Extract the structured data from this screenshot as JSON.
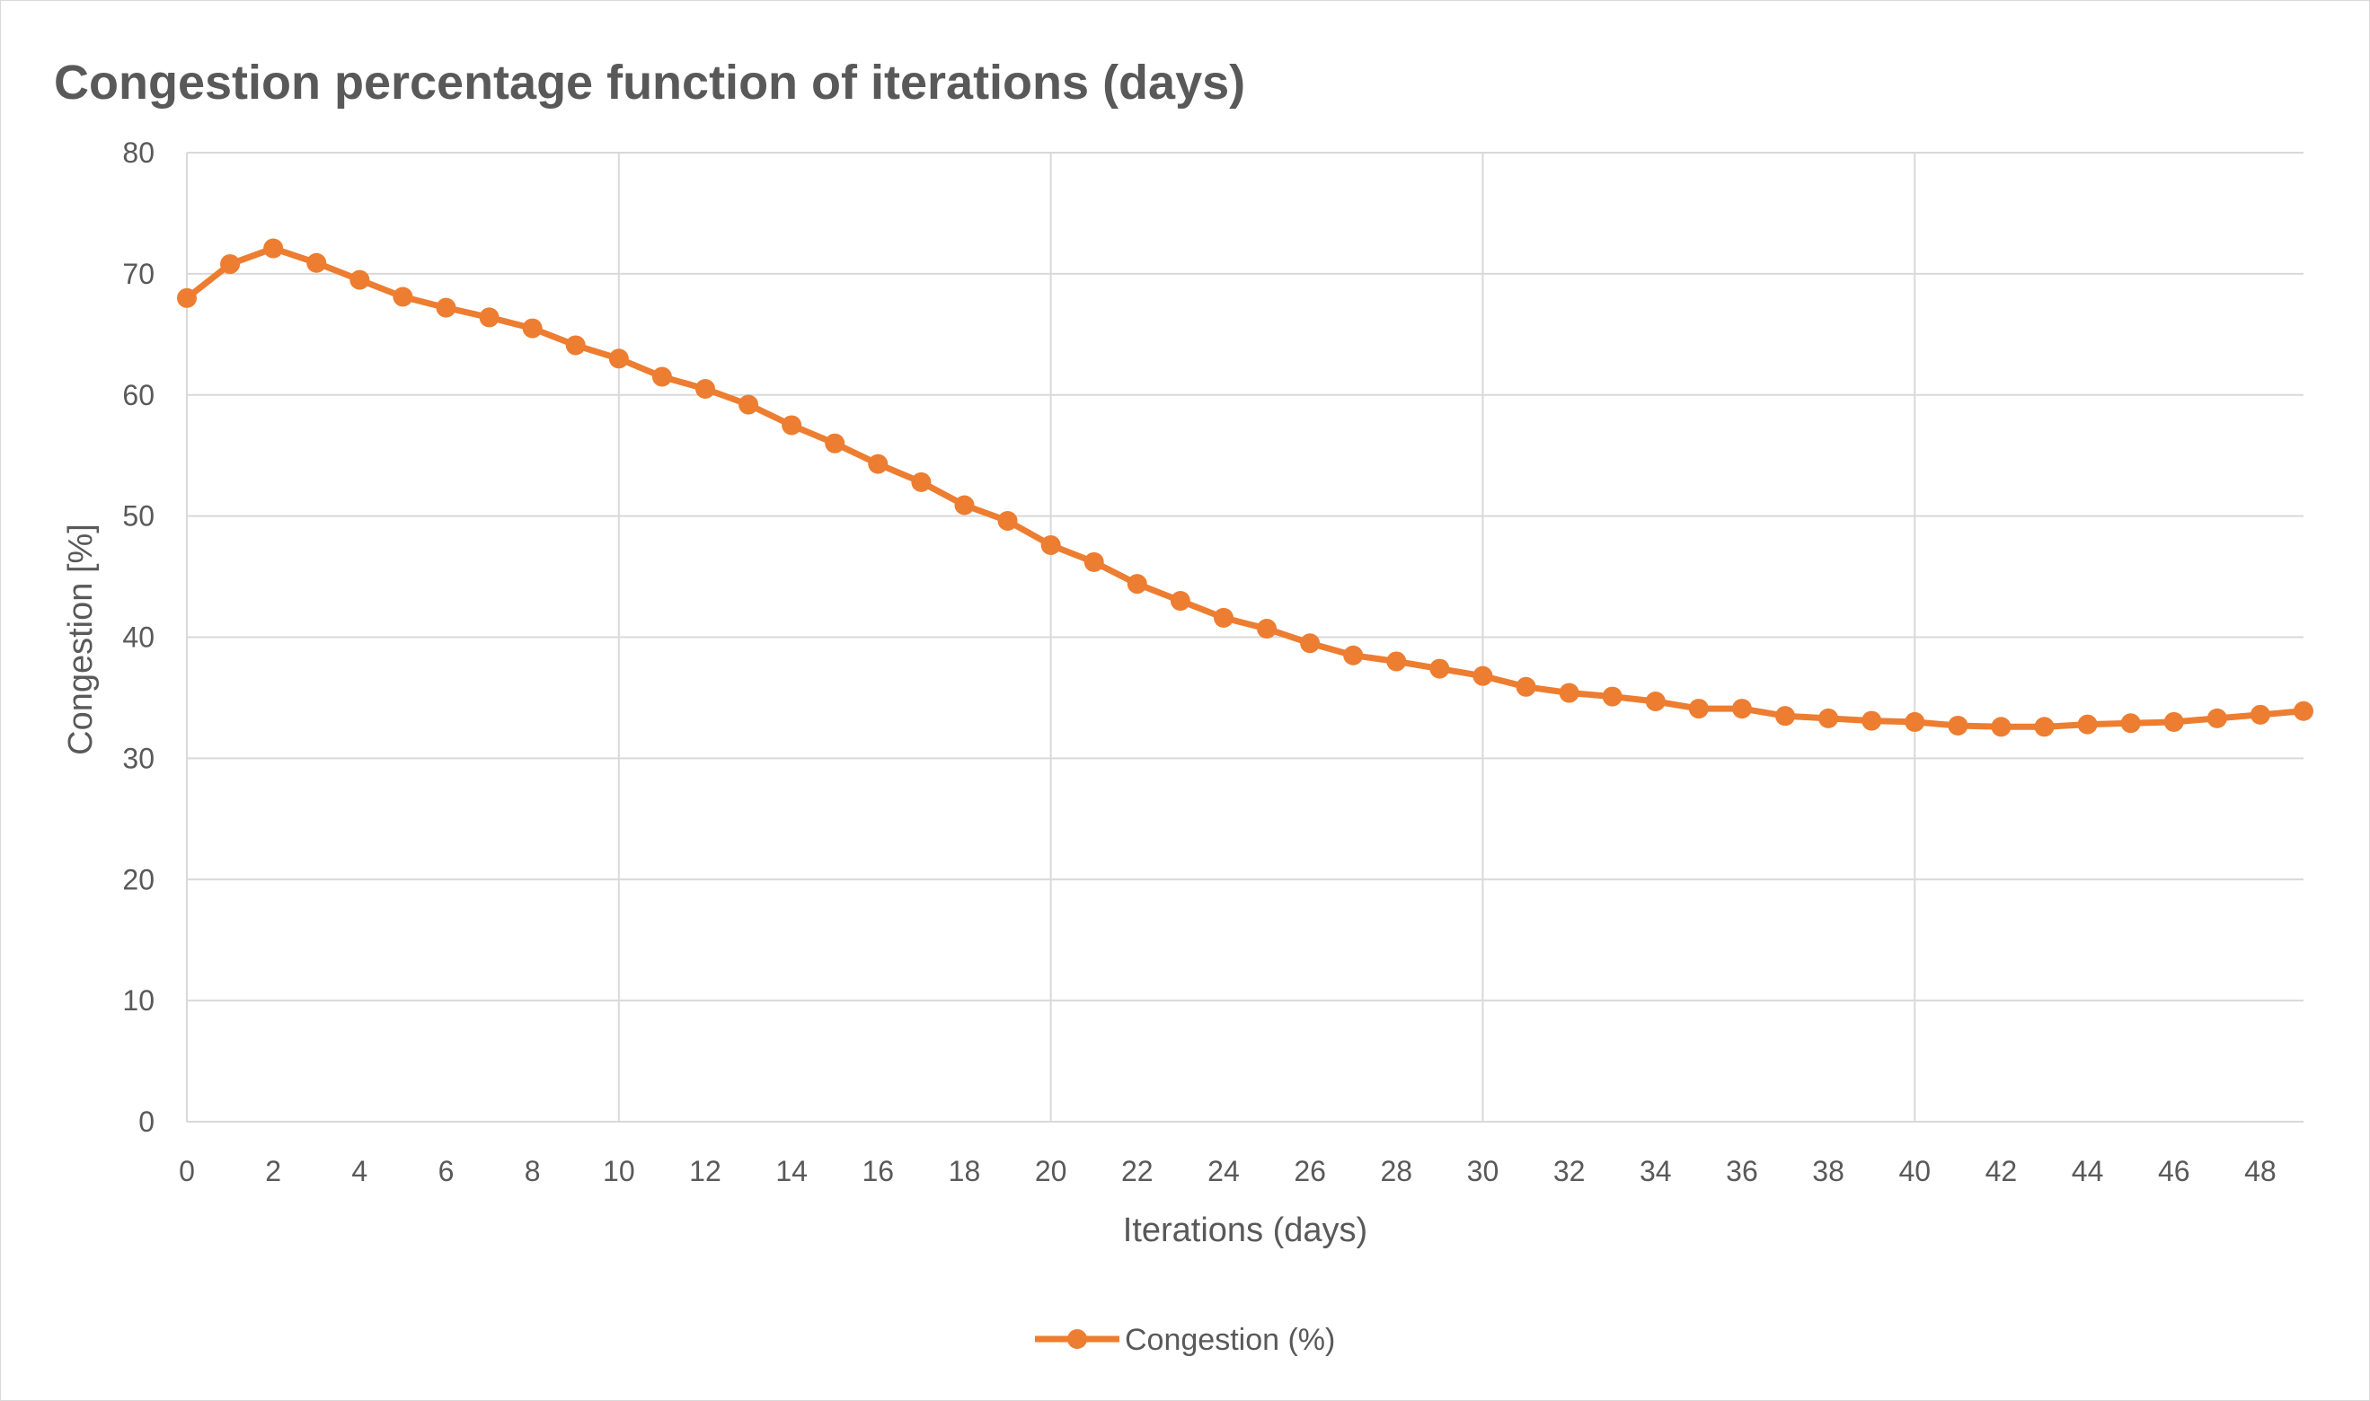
{
  "chart_data": {
    "type": "line",
    "title": "Congestion percentage function of iterations (days)",
    "xlabel": "Iterations (days)",
    "ylabel": "Congestion [%]",
    "xlim": [
      0,
      49
    ],
    "ylim": [
      0,
      80
    ],
    "x_ticks": [
      0,
      2,
      4,
      6,
      8,
      10,
      12,
      14,
      16,
      18,
      20,
      22,
      24,
      26,
      28,
      30,
      32,
      34,
      36,
      38,
      40,
      42,
      44,
      46,
      48
    ],
    "y_ticks": [
      0,
      10,
      20,
      30,
      40,
      50,
      60,
      70,
      80
    ],
    "x_gridlines": [
      0,
      10,
      20,
      30,
      40
    ],
    "y_gridlines": true,
    "legend_position": "bottom",
    "color": "#ED7D31",
    "series": [
      {
        "name": "Congestion (%)",
        "x": [
          0,
          1,
          2,
          3,
          4,
          5,
          6,
          7,
          8,
          9,
          10,
          11,
          12,
          13,
          14,
          15,
          16,
          17,
          18,
          19,
          20,
          21,
          22,
          23,
          24,
          25,
          26,
          27,
          28,
          29,
          30,
          31,
          32,
          33,
          34,
          35,
          36,
          37,
          38,
          39,
          40,
          41,
          42,
          43,
          44,
          45,
          46,
          47,
          48,
          49
        ],
        "values": [
          68.0,
          70.8,
          72.1,
          70.9,
          69.5,
          68.1,
          67.2,
          66.4,
          65.5,
          64.1,
          63.0,
          61.5,
          60.5,
          59.2,
          57.5,
          56.0,
          54.3,
          52.8,
          50.9,
          49.6,
          47.6,
          46.2,
          44.4,
          43.0,
          41.6,
          40.7,
          39.5,
          38.5,
          38.0,
          37.4,
          36.8,
          35.9,
          35.4,
          35.1,
          34.7,
          34.1,
          34.1,
          33.5,
          33.3,
          33.1,
          33.0,
          32.7,
          32.6,
          32.6,
          32.8,
          32.9,
          33.0,
          33.3,
          33.6,
          33.9
        ]
      }
    ]
  }
}
